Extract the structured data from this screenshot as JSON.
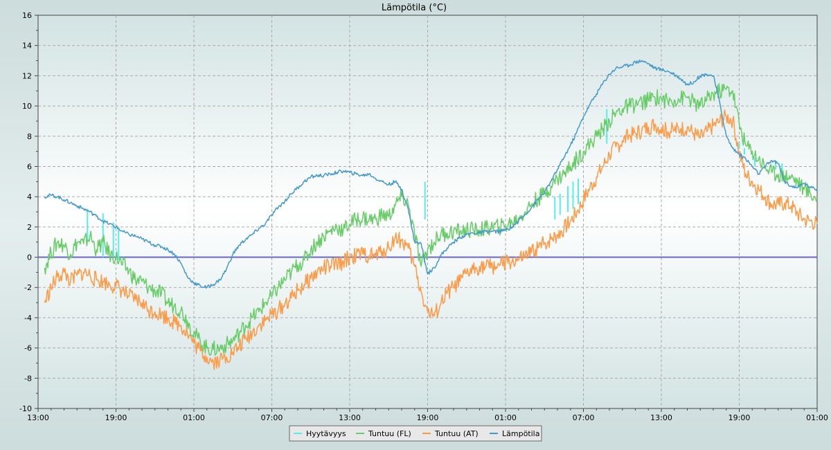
{
  "chart_data": {
    "type": "line",
    "title": "Lämpötila (°C)",
    "xlabel": "",
    "ylabel": "",
    "ylim": [
      -10,
      16
    ],
    "y_ticks": [
      -10,
      -8,
      -6,
      -4,
      -2,
      0,
      2,
      4,
      6,
      8,
      10,
      12,
      14,
      16
    ],
    "x_range_hours": [
      0,
      36
    ],
    "x_ticks": [
      {
        "hour": 0,
        "label": "13:00"
      },
      {
        "hour": 6,
        "label": "19:00"
      },
      {
        "hour": 12,
        "label": "01:00"
      },
      {
        "hour": 18,
        "label": "07:00"
      },
      {
        "hour": 24,
        "label": "13:00"
      },
      {
        "hour": 30,
        "label": "19:00"
      },
      {
        "hour": 36,
        "label": "01:00"
      },
      {
        "hour": 42,
        "label": "07:00"
      },
      {
        "hour": 48,
        "label": "13:00"
      },
      {
        "hour": 54,
        "label": "19:00"
      },
      {
        "hour": 60,
        "label": "01:00"
      }
    ],
    "grid": true,
    "reference_line": {
      "y": 0,
      "color": "#6666cc"
    },
    "legend_position": "bottom-center",
    "series": [
      {
        "name": "Hyytävyys",
        "color": "#55eeee",
        "x": [
          3.8,
          5.0,
          5.8,
          6.2,
          29.8,
          39.8,
          40.2,
          40.8,
          41.2,
          41.6,
          43.8,
          54.0,
          54.4,
          55.2,
          56.8,
          57.3
        ],
        "y_low": [
          1.0,
          0.0,
          0.0,
          -0.2,
          2.5,
          2.5,
          2.8,
          3.0,
          3.2,
          3.5,
          7.5,
          7.2,
          6.8,
          6.0,
          5.8,
          5.5
        ],
        "y_high": [
          3.2,
          2.9,
          2.3,
          2.0,
          5.0,
          4.0,
          4.2,
          4.7,
          5.0,
          5.2,
          9.8,
          7.6,
          7.2,
          6.6,
          6.4,
          6.2
        ]
      },
      {
        "name": "Tuntuu (FL)",
        "color": "#66cc66",
        "x": [
          0.5,
          1.0,
          1.5,
          2.0,
          2.5,
          3.0,
          3.5,
          4.0,
          4.5,
          5.0,
          5.5,
          6.0,
          6.5,
          7.0,
          7.5,
          8.0,
          8.5,
          9.0,
          9.5,
          10.0,
          10.5,
          11.0,
          11.5,
          12.0,
          12.5,
          13.0,
          13.5,
          14.0,
          14.5,
          15.0,
          15.5,
          16.0,
          16.5,
          17.0,
          17.5,
          18.0,
          18.5,
          19.0,
          19.5,
          20.0,
          20.5,
          21.0,
          21.5,
          22.0,
          22.5,
          23.0,
          23.5,
          24.0,
          24.5,
          25.0,
          25.5,
          26.0,
          26.5,
          27.0,
          27.5,
          28.0,
          28.5,
          29.0,
          29.5,
          30.0,
          30.5,
          31.0,
          31.5,
          32.0,
          32.5,
          33.0,
          33.5,
          34.0,
          34.5,
          35.0,
          35.5,
          36.0,
          36.5,
          37.0,
          37.5,
          38.0,
          38.5,
          39.0,
          39.5,
          40.0,
          40.5,
          41.0,
          41.5,
          42.0,
          42.5,
          43.0,
          43.5,
          44.0,
          44.5,
          45.0,
          45.5,
          46.0,
          46.5,
          47.0,
          47.5,
          48.0,
          48.5,
          49.0,
          49.5,
          50.0,
          50.5,
          51.0,
          51.5,
          52.0,
          52.5,
          53.0,
          53.5,
          54.0,
          54.5,
          55.0,
          55.5,
          56.0,
          56.5,
          57.0,
          57.5,
          58.0,
          58.5,
          59.0,
          59.5,
          60.0
        ],
        "y": [
          -0.7,
          0.3,
          1.0,
          0.8,
          0.2,
          1.0,
          0.9,
          1.4,
          0.5,
          1.0,
          0.2,
          0.0,
          -0.5,
          -0.9,
          -1.5,
          -1.6,
          -2.0,
          -2.2,
          -2.4,
          -3.0,
          -3.2,
          -3.5,
          -4.2,
          -5.0,
          -5.6,
          -6.0,
          -6.1,
          -6.0,
          -5.8,
          -5.5,
          -5.0,
          -4.5,
          -4.0,
          -3.6,
          -3.0,
          -2.6,
          -2.0,
          -1.5,
          -1.0,
          -0.5,
          -0.2,
          0.5,
          1.0,
          1.4,
          1.7,
          2.0,
          1.8,
          2.2,
          2.5,
          2.6,
          2.5,
          2.5,
          2.8,
          2.7,
          3.4,
          4.0,
          3.5,
          1.5,
          -0.6,
          0.5,
          1.0,
          1.5,
          1.6,
          1.7,
          1.7,
          1.8,
          1.8,
          1.8,
          1.9,
          2.0,
          2.0,
          2.1,
          2.3,
          2.6,
          3.0,
          3.5,
          3.9,
          4.2,
          4.7,
          5.2,
          5.5,
          6.0,
          6.5,
          7.0,
          7.5,
          8.0,
          8.5,
          9.0,
          9.5,
          9.8,
          10.0,
          10.1,
          10.2,
          10.4,
          10.6,
          10.5,
          10.3,
          10.4,
          10.5,
          10.6,
          10.2,
          10.0,
          10.4,
          10.8,
          11.0,
          11.1,
          11.0,
          8.8,
          7.4,
          7.0,
          6.5,
          6.0,
          5.6,
          5.5,
          5.4,
          5.3,
          5.0,
          4.5,
          4.2,
          3.8
        ]
      },
      {
        "name": "Tuntuu (AT)",
        "color": "#ff9944",
        "x": [
          0.5,
          1.0,
          1.5,
          2.0,
          2.5,
          3.0,
          3.5,
          4.0,
          4.5,
          5.0,
          5.5,
          6.0,
          6.5,
          7.0,
          7.5,
          8.0,
          8.5,
          9.0,
          9.5,
          10.0,
          10.5,
          11.0,
          11.5,
          12.0,
          12.5,
          13.0,
          13.5,
          14.0,
          14.5,
          15.0,
          15.5,
          16.0,
          16.5,
          17.0,
          17.5,
          18.0,
          18.5,
          19.0,
          19.5,
          20.0,
          20.5,
          21.0,
          21.5,
          22.0,
          22.5,
          23.0,
          23.5,
          24.0,
          24.5,
          25.0,
          25.5,
          26.0,
          26.5,
          27.0,
          27.5,
          28.0,
          28.5,
          29.0,
          29.5,
          30.0,
          30.5,
          31.0,
          31.5,
          32.0,
          32.5,
          33.0,
          33.5,
          34.0,
          34.5,
          35.0,
          35.5,
          36.0,
          36.5,
          37.0,
          37.5,
          38.0,
          38.5,
          39.0,
          39.5,
          40.0,
          40.5,
          41.0,
          41.5,
          42.0,
          42.5,
          43.0,
          43.5,
          44.0,
          44.5,
          45.0,
          45.5,
          46.0,
          46.5,
          47.0,
          47.5,
          48.0,
          48.5,
          49.0,
          49.5,
          50.0,
          50.5,
          51.0,
          51.5,
          52.0,
          52.5,
          53.0,
          53.5,
          54.0,
          54.5,
          55.0,
          55.5,
          56.0,
          56.5,
          57.0,
          57.5,
          58.0,
          58.5,
          59.0,
          59.5,
          60.0
        ],
        "y": [
          -3.0,
          -2.0,
          -1.3,
          -1.0,
          -1.6,
          -1.2,
          -1.0,
          -1.2,
          -1.5,
          -1.6,
          -1.8,
          -1.9,
          -2.2,
          -2.6,
          -2.8,
          -3.0,
          -3.5,
          -3.6,
          -3.8,
          -4.0,
          -4.3,
          -4.5,
          -5.0,
          -5.7,
          -6.2,
          -6.6,
          -6.9,
          -6.8,
          -6.6,
          -6.3,
          -5.9,
          -5.4,
          -5.0,
          -4.5,
          -4.2,
          -3.8,
          -3.5,
          -3.1,
          -2.7,
          -2.2,
          -1.8,
          -1.4,
          -1.0,
          -0.7,
          -0.6,
          -0.5,
          -0.3,
          0.0,
          0.1,
          0.2,
          0.1,
          0.1,
          0.4,
          0.6,
          1.3,
          1.1,
          0.6,
          -0.6,
          -2.3,
          -3.6,
          -3.9,
          -3.1,
          -2.4,
          -2.0,
          -1.6,
          -1.1,
          -0.8,
          -0.6,
          -0.6,
          -0.6,
          -0.5,
          -0.4,
          -0.3,
          -0.2,
          0.0,
          0.3,
          0.6,
          0.9,
          1.2,
          1.5,
          1.9,
          2.4,
          3.0,
          3.8,
          4.6,
          5.3,
          6.0,
          6.8,
          7.3,
          7.7,
          8.0,
          8.2,
          8.4,
          8.6,
          8.8,
          8.5,
          8.3,
          8.4,
          8.5,
          8.6,
          8.2,
          7.9,
          8.3,
          8.7,
          9.0,
          9.3,
          9.1,
          6.9,
          5.5,
          5.0,
          4.5,
          4.0,
          3.5,
          3.5,
          3.6,
          3.4,
          2.9,
          2.5,
          2.4,
          2.2
        ]
      },
      {
        "name": "Lämpötila",
        "color": "#4499cc",
        "x": [
          0.5,
          1.0,
          1.5,
          2.0,
          2.5,
          3.0,
          3.5,
          4.0,
          4.5,
          5.0,
          5.5,
          6.0,
          6.5,
          7.0,
          7.5,
          8.0,
          8.5,
          9.0,
          9.5,
          10.0,
          10.5,
          11.0,
          11.5,
          12.0,
          12.5,
          13.0,
          13.5,
          14.0,
          14.5,
          15.0,
          15.5,
          16.0,
          16.5,
          17.0,
          17.5,
          18.0,
          18.5,
          19.0,
          19.5,
          20.0,
          20.5,
          21.0,
          21.5,
          22.0,
          22.5,
          23.0,
          23.5,
          24.0,
          24.5,
          25.0,
          25.5,
          26.0,
          26.5,
          27.0,
          27.5,
          28.0,
          28.5,
          29.0,
          29.5,
          30.0,
          30.5,
          31.0,
          31.5,
          32.0,
          32.5,
          33.0,
          33.5,
          34.0,
          34.5,
          35.0,
          35.5,
          36.0,
          36.5,
          37.0,
          37.5,
          38.0,
          38.5,
          39.0,
          39.5,
          40.0,
          40.5,
          41.0,
          41.5,
          42.0,
          42.5,
          43.0,
          43.5,
          44.0,
          44.5,
          45.0,
          45.5,
          46.0,
          46.5,
          47.0,
          47.5,
          48.0,
          48.5,
          49.0,
          49.5,
          50.0,
          50.5,
          51.0,
          51.5,
          52.0,
          52.5,
          53.0,
          53.5,
          54.0,
          54.5,
          55.0,
          55.5,
          56.0,
          56.5,
          57.0,
          57.5,
          58.0,
          58.5,
          59.0,
          59.5,
          60.0
        ],
        "y": [
          4.0,
          4.1,
          4.0,
          3.8,
          3.6,
          3.4,
          3.2,
          3.0,
          2.7,
          2.4,
          2.2,
          2.0,
          1.7,
          1.5,
          1.4,
          1.2,
          1.0,
          0.8,
          0.7,
          0.5,
          0.2,
          -0.4,
          -1.3,
          -1.7,
          -1.9,
          -2.0,
          -1.8,
          -1.5,
          -0.8,
          0.2,
          0.8,
          1.2,
          1.5,
          1.9,
          2.2,
          2.8,
          3.3,
          3.7,
          4.2,
          4.6,
          5.0,
          5.3,
          5.4,
          5.4,
          5.5,
          5.6,
          5.7,
          5.6,
          5.5,
          5.4,
          5.5,
          5.2,
          5.0,
          4.8,
          5.0,
          4.5,
          3.2,
          1.0,
          0.9,
          -1.1,
          -0.7,
          0.1,
          0.6,
          1.0,
          1.3,
          1.5,
          1.6,
          1.6,
          1.7,
          1.7,
          1.7,
          1.8,
          2.0,
          2.4,
          2.8,
          3.3,
          3.8,
          4.3,
          5.0,
          5.8,
          6.6,
          7.4,
          8.3,
          9.3,
          10.1,
          10.8,
          11.5,
          12.1,
          12.5,
          12.6,
          12.7,
          12.9,
          13.0,
          12.8,
          12.5,
          12.4,
          12.3,
          12.1,
          11.8,
          11.4,
          11.6,
          12.0,
          12.1,
          12.0,
          10.2,
          8.0,
          7.2,
          6.8,
          6.5,
          6.0,
          5.5,
          6.0,
          6.4,
          6.2,
          5.0,
          4.7,
          4.6,
          4.9,
          4.6,
          4.5
        ]
      }
    ]
  }
}
